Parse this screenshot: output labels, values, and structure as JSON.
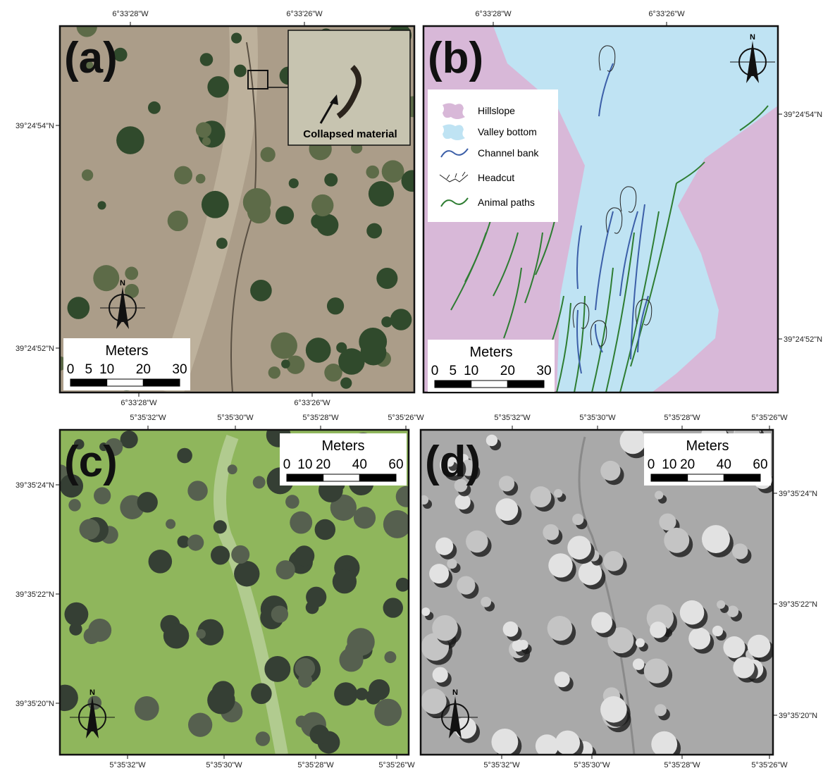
{
  "panels": [
    {
      "label": "(a)",
      "top_ticks": [
        "6°33'28\"W",
        "6°33'26\"W"
      ],
      "bottom_ticks": [
        "6°33'28\"W",
        "6°33'26\"W"
      ],
      "left_ticks": [
        "39°24'54\"N",
        "39°24'52\"N"
      ],
      "scale": {
        "title": "Meters",
        "ticks": [
          0,
          5,
          10,
          20,
          30
        ]
      },
      "north": "N",
      "inset_label": "Collapsed material"
    },
    {
      "label": "(b)",
      "top_ticks": [
        "6°33'28\"W",
        "6°33'26\"W"
      ],
      "right_ticks": [
        "39°24'54\"N",
        "39°24'52\"N"
      ],
      "scale": {
        "title": "Meters",
        "ticks": [
          0,
          5,
          10,
          20,
          30
        ]
      },
      "north": "N",
      "legend": [
        "Hillslope",
        "Valley bottom",
        "Channel bank",
        "Headcut",
        "Animal paths"
      ]
    },
    {
      "label": "(c)",
      "top_ticks": [
        "5°35'32\"W",
        "5°35'30\"W",
        "5°35'28\"W",
        "5°35'26\"W"
      ],
      "bottom_ticks": [
        "5°35'32\"W",
        "5°35'30\"W",
        "5°35'28\"W",
        "5°35'26\"W"
      ],
      "left_ticks": [
        "39°35'24\"N",
        "39°35'22\"N",
        "39°35'20\"N"
      ],
      "scale": {
        "title": "Meters",
        "ticks": [
          0,
          10,
          20,
          40,
          60
        ]
      },
      "north": "N"
    },
    {
      "label": "(d)",
      "top_ticks": [
        "5°35'32\"W",
        "5°35'30\"W",
        "5°35'28\"W",
        "5°35'26\"W"
      ],
      "bottom_ticks": [
        "5°35'32\"W",
        "5°35'30\"W",
        "5°35'28\"W",
        "5°35'26\"W"
      ],
      "right_ticks": [
        "39°35'24\"N",
        "39°35'22\"N",
        "39°35'20\"N"
      ],
      "scale": {
        "title": "Meters",
        "ticks": [
          0,
          10,
          20,
          40,
          60
        ]
      },
      "north": "N"
    }
  ]
}
